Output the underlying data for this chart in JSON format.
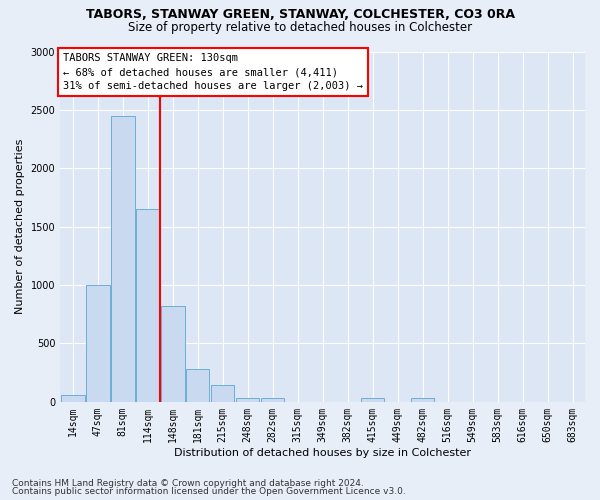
{
  "title_line1": "TABORS, STANWAY GREEN, STANWAY, COLCHESTER, CO3 0RA",
  "title_line2": "Size of property relative to detached houses in Colchester",
  "xlabel": "Distribution of detached houses by size in Colchester",
  "ylabel": "Number of detached properties",
  "categories": [
    "14sqm",
    "47sqm",
    "81sqm",
    "114sqm",
    "148sqm",
    "181sqm",
    "215sqm",
    "248sqm",
    "282sqm",
    "315sqm",
    "349sqm",
    "382sqm",
    "415sqm",
    "449sqm",
    "482sqm",
    "516sqm",
    "549sqm",
    "583sqm",
    "616sqm",
    "650sqm",
    "683sqm"
  ],
  "bar_values": [
    60,
    1000,
    2450,
    1650,
    820,
    280,
    140,
    35,
    35,
    0,
    0,
    0,
    35,
    0,
    35,
    0,
    0,
    0,
    0,
    0,
    0
  ],
  "bar_color": "#c9d9ef",
  "bar_edge_color": "#6baed6",
  "ylim": [
    0,
    3000
  ],
  "yticks": [
    0,
    500,
    1000,
    1500,
    2000,
    2500,
    3000
  ],
  "property_label": "TABORS STANWAY GREEN: 130sqm",
  "annotation_line1": "← 68% of detached houses are smaller (4,411)",
  "annotation_line2": "31% of semi-detached houses are larger (2,003) →",
  "vline_bar_index": 3,
  "footer_line1": "Contains HM Land Registry data © Crown copyright and database right 2024.",
  "footer_line2": "Contains public sector information licensed under the Open Government Licence v3.0.",
  "background_color": "#e8eef8",
  "plot_bg_color": "#dce6f5",
  "grid_color": "#ffffff",
  "title_fontsize": 9,
  "subtitle_fontsize": 8.5,
  "axis_label_fontsize": 8,
  "tick_fontsize": 7,
  "annotation_fontsize": 7.5,
  "footer_fontsize": 6.5
}
